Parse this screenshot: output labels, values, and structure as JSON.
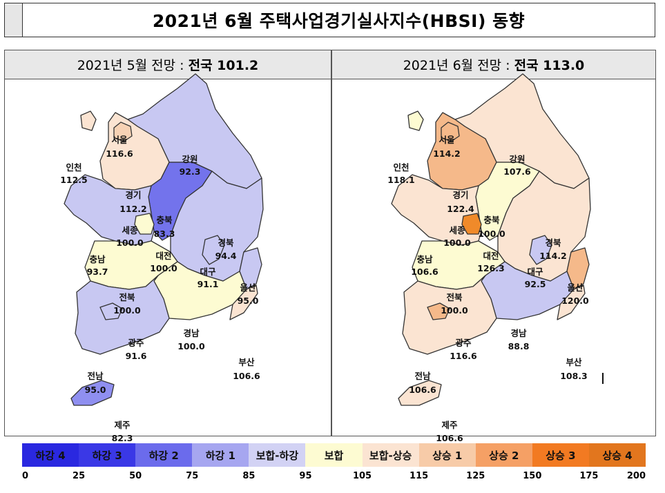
{
  "title": "2021년 6월 주택사업경기실사지수(HBSI) 동향",
  "panels": [
    {
      "id": "may",
      "header_prefix": "2021년 5월 전망 :",
      "header_national": "전국 101.2",
      "regions": {
        "seoul": {
          "name": "서울",
          "value": "116.6",
          "color": "#f7d2b4"
        },
        "incheon": {
          "name": "인천",
          "value": "112.5",
          "color": "#fbe4d2"
        },
        "gyeonggi": {
          "name": "경기",
          "value": "112.2",
          "color": "#fbe4d2"
        },
        "gangwon": {
          "name": "강원",
          "value": "92.3",
          "color": "#c8c8f2"
        },
        "chungbuk": {
          "name": "충북",
          "value": "83.3",
          "color": "#7373ec"
        },
        "sejong": {
          "name": "세종",
          "value": "100.0",
          "color": "#fdfbd2"
        },
        "chungnam": {
          "name": "충남",
          "value": "93.7",
          "color": "#c8c8f2"
        },
        "daejeon": {
          "name": "대전",
          "value": "100.0",
          "color": "#fdfbd2"
        },
        "gyeongbuk": {
          "name": "경북",
          "value": "94.4",
          "color": "#c8c8f2"
        },
        "daegu": {
          "name": "대구",
          "value": "91.1",
          "color": "#c8c8f2"
        },
        "ulsan": {
          "name": "울산",
          "value": "95.0",
          "color": "#c8c8f2"
        },
        "jeonbuk": {
          "name": "전북",
          "value": "100.0",
          "color": "#fdfbd2"
        },
        "gyeongnam": {
          "name": "경남",
          "value": "100.0",
          "color": "#fdfbd2"
        },
        "busan": {
          "name": "부산",
          "value": "106.6",
          "color": "#fbe4d2"
        },
        "gwangju": {
          "name": "광주",
          "value": "91.6",
          "color": "#c8c8f2"
        },
        "jeonnam": {
          "name": "전남",
          "value": "95.0",
          "color": "#c8c8f2"
        },
        "jeju": {
          "name": "제주",
          "value": "82.3",
          "color": "#8f8ff0"
        }
      }
    },
    {
      "id": "june",
      "header_prefix": "2021년 6월 전망 :",
      "header_national": "전국 113.0",
      "regions": {
        "seoul": {
          "name": "서울",
          "value": "114.2",
          "color": "#f5b98a"
        },
        "incheon": {
          "name": "인천",
          "value": "118.1",
          "color": "#fdfbd2"
        },
        "gyeonggi": {
          "name": "경기",
          "value": "122.4",
          "color": "#f5b98a"
        },
        "gangwon": {
          "name": "강원",
          "value": "107.6",
          "color": "#fbe4d2"
        },
        "chungbuk": {
          "name": "충북",
          "value": "100.0",
          "color": "#fdfbd2"
        },
        "sejong": {
          "name": "세종",
          "value": "100.0",
          "color": "#fdfbd2"
        },
        "chungnam": {
          "name": "충남",
          "value": "106.6",
          "color": "#fbe4d2"
        },
        "daejeon": {
          "name": "대전",
          "value": "126.3",
          "color": "#f08a2a"
        },
        "gyeongbuk": {
          "name": "경북",
          "value": "114.2",
          "color": "#fbe4d2"
        },
        "daegu": {
          "name": "대구",
          "value": "92.5",
          "color": "#c8c8f2"
        },
        "ulsan": {
          "name": "울산",
          "value": "120.0",
          "color": "#f5b98a"
        },
        "jeonbuk": {
          "name": "전북",
          "value": "100.0",
          "color": "#fdfbd2"
        },
        "gyeongnam": {
          "name": "경남",
          "value": "88.8",
          "color": "#c8c8f2"
        },
        "busan": {
          "name": "부산",
          "value": "108.3",
          "color": "#fbe4d2"
        },
        "gwangju": {
          "name": "광주",
          "value": "116.6",
          "color": "#f5b98a"
        },
        "jeonnam": {
          "name": "전남",
          "value": "106.6",
          "color": "#fbe4d2"
        },
        "jeju": {
          "name": "제주",
          "value": "106.6",
          "color": "#fbe4d2"
        }
      }
    }
  ],
  "legend": {
    "cells": [
      {
        "label": "하강 4",
        "color": "#2a28e0",
        "text_color": "#111111"
      },
      {
        "label": "하강 3",
        "color": "#3a38e6",
        "text_color": "#111111"
      },
      {
        "label": "하강 2",
        "color": "#6b6bec",
        "text_color": "#111111"
      },
      {
        "label": "하강 1",
        "color": "#a6a6f0",
        "text_color": "#111111"
      },
      {
        "label": "보합-하강",
        "color": "#d2d2f4",
        "text_color": "#111111"
      },
      {
        "label": "보합",
        "color": "#fdfbd2",
        "text_color": "#111111"
      },
      {
        "label": "보합-상승",
        "color": "#fbe4d2",
        "text_color": "#111111"
      },
      {
        "label": "상승 1",
        "color": "#f7cba8",
        "text_color": "#111111"
      },
      {
        "label": "상승 2",
        "color": "#f5a065",
        "text_color": "#111111"
      },
      {
        "label": "상승 3",
        "color": "#f27a22",
        "text_color": "#111111"
      },
      {
        "label": "상승 4",
        "color": "#e2761e",
        "text_color": "#111111"
      }
    ],
    "ticks": [
      "0",
      "25",
      "50",
      "75",
      "85",
      "95",
      "105",
      "115",
      "125",
      "150",
      "175",
      "200"
    ]
  }
}
